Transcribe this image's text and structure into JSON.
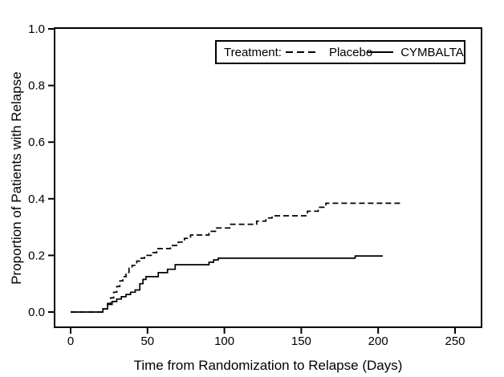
{
  "figure": {
    "background": "#ffffff",
    "frame_color": "#000000"
  },
  "legend": {
    "title": "Treatment:",
    "items": [
      {
        "label": "Placebo",
        "line_style": "dashed"
      },
      {
        "label": "CYMBALTA",
        "line_style": "solid"
      }
    ]
  },
  "chart_data": {
    "type": "line",
    "subtype": "kaplan-meier-step",
    "title": "",
    "xlabel": "Time from Randomization to Relapse (Days)",
    "ylabel": "Proportion of Patients with Relapse",
    "xlim": [
      0,
      250
    ],
    "ylim": [
      0.0,
      1.0
    ],
    "x_ticks": [
      0,
      50,
      100,
      150,
      200,
      250
    ],
    "y_ticks": [
      0.0,
      0.2,
      0.4,
      0.6,
      0.8,
      1.0
    ],
    "grid": false,
    "legend_position": "top-right-inside",
    "line_color": "#000000",
    "series": [
      {
        "name": "Placebo",
        "dash": "dashed",
        "end_x": 216,
        "points": [
          [
            0,
            0
          ],
          [
            21,
            0.011
          ],
          [
            24,
            0.03
          ],
          [
            26,
            0.05
          ],
          [
            28,
            0.07
          ],
          [
            30,
            0.09
          ],
          [
            32,
            0.11
          ],
          [
            34,
            0.125
          ],
          [
            36,
            0.14
          ],
          [
            38,
            0.155
          ],
          [
            40,
            0.165
          ],
          [
            43,
            0.18
          ],
          [
            45,
            0.19
          ],
          [
            48,
            0.2
          ],
          [
            53,
            0.21
          ],
          [
            56,
            0.224
          ],
          [
            65,
            0.235
          ],
          [
            70,
            0.247
          ],
          [
            74,
            0.26
          ],
          [
            78,
            0.272
          ],
          [
            90,
            0.285
          ],
          [
            95,
            0.297
          ],
          [
            104,
            0.31
          ],
          [
            121,
            0.321
          ],
          [
            127,
            0.332
          ],
          [
            131,
            0.34
          ],
          [
            154,
            0.356
          ],
          [
            161,
            0.37
          ],
          [
            166,
            0.384
          ]
        ]
      },
      {
        "name": "CYMBALTA",
        "dash": "solid",
        "end_x": 203,
        "points": [
          [
            0,
            0
          ],
          [
            21,
            0.011
          ],
          [
            24,
            0.027
          ],
          [
            27,
            0.037
          ],
          [
            30,
            0.046
          ],
          [
            33,
            0.054
          ],
          [
            36,
            0.062
          ],
          [
            39,
            0.07
          ],
          [
            42,
            0.078
          ],
          [
            45,
            0.1
          ],
          [
            47,
            0.115
          ],
          [
            49,
            0.125
          ],
          [
            57,
            0.139
          ],
          [
            63,
            0.151
          ],
          [
            68,
            0.167
          ],
          [
            90,
            0.176
          ],
          [
            93,
            0.184
          ],
          [
            96,
            0.19
          ],
          [
            185,
            0.198
          ]
        ]
      }
    ]
  }
}
